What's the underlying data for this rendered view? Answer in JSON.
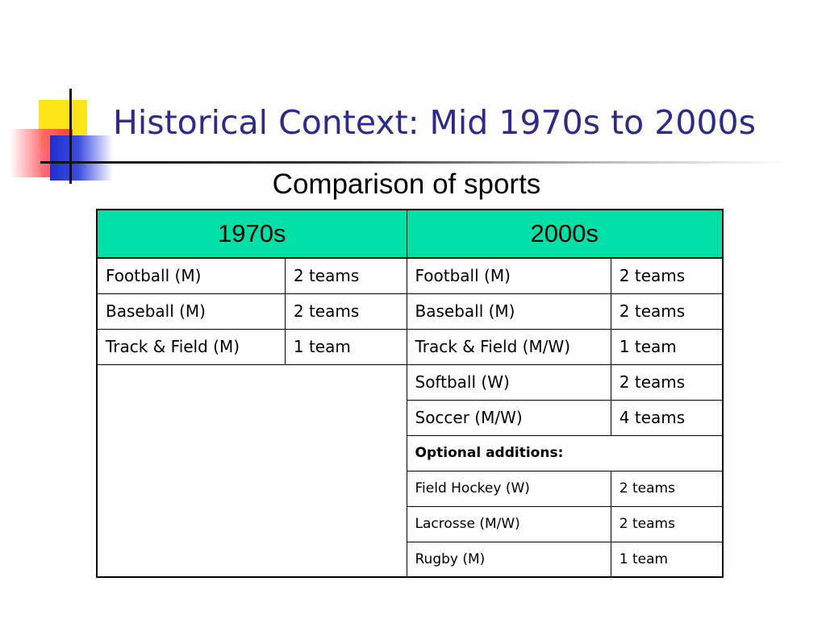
{
  "title": "Historical Context: Mid 1970s to 2000s",
  "subtitle": "Comparison of sports",
  "table": {
    "headers": [
      "1970s",
      "2000s"
    ],
    "rows_1970s": [
      {
        "sport": "Football (M)",
        "teams": "2 teams"
      },
      {
        "sport": "Baseball (M)",
        "teams": "2 teams"
      },
      {
        "sport": "Track & Field (M)",
        "teams": "1 team"
      }
    ],
    "rows_2000s": [
      {
        "sport": "Football (M)",
        "teams": "2 teams"
      },
      {
        "sport": "Baseball (M)",
        "teams": "2 teams"
      },
      {
        "sport": "Track & Field (M/W)",
        "teams": "1 team"
      },
      {
        "sport": "Softball (W)",
        "teams": "2 teams"
      },
      {
        "sport": "Soccer (M/W)",
        "teams": "4 teams"
      }
    ],
    "optional_label": "Optional additions:",
    "optional_rows": [
      {
        "sport": "Field Hockey (W)",
        "teams": "2 teams"
      },
      {
        "sport": "Lacrosse (M/W)",
        "teams": "2 teams"
      },
      {
        "sport": "Rugby (M)",
        "teams": "1 team"
      }
    ]
  },
  "colors": {
    "title": "#2c2a8c",
    "header_bg": "#00e0a6",
    "deco_yellow": "#ffe418",
    "deco_red": "#ff2e3a",
    "deco_blue": "#1f2fd0"
  }
}
